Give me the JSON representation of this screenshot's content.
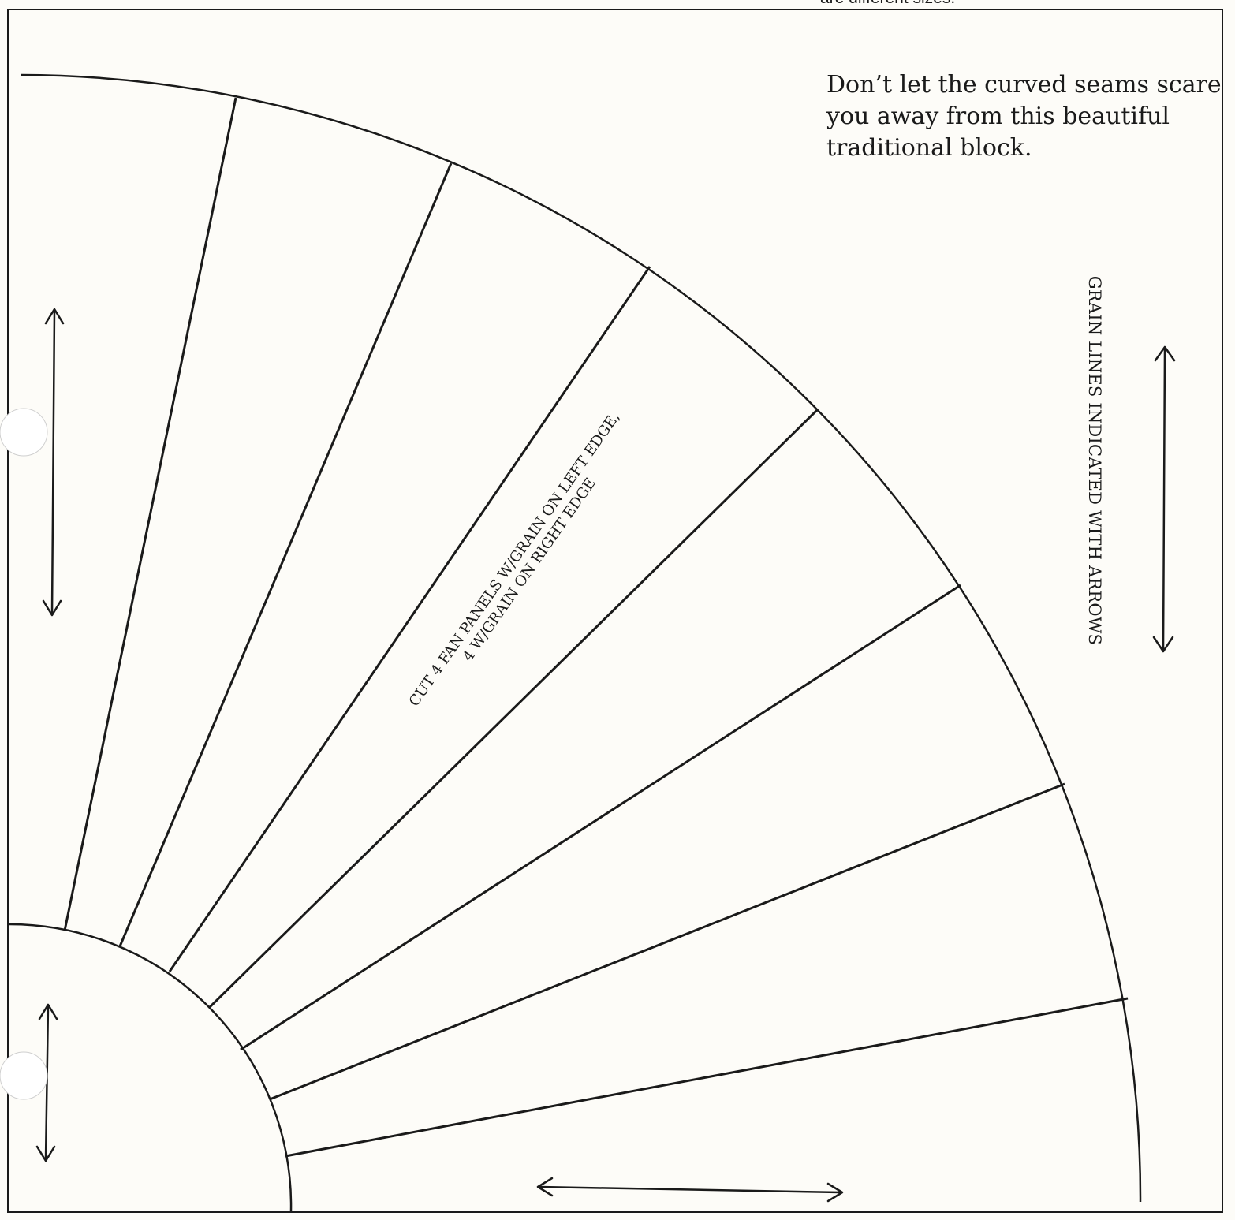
{
  "top_note": "are different sizes.",
  "intro": {
    "lines": [
      "Don’t let the curved seams scare",
      "you away from this beautiful",
      "traditional block."
    ]
  },
  "grain_note": "GRAIN LINES INDICATED WITH ARROWS",
  "cut_note": {
    "line1": "CUT 4 FAN PANELS W/GRAIN ON LEFT EDGE,",
    "line2": "4 W/GRAIN ON RIGHT EDGE"
  },
  "line_color": "#1a1a1a",
  "paper_color": "#fdfcf8"
}
